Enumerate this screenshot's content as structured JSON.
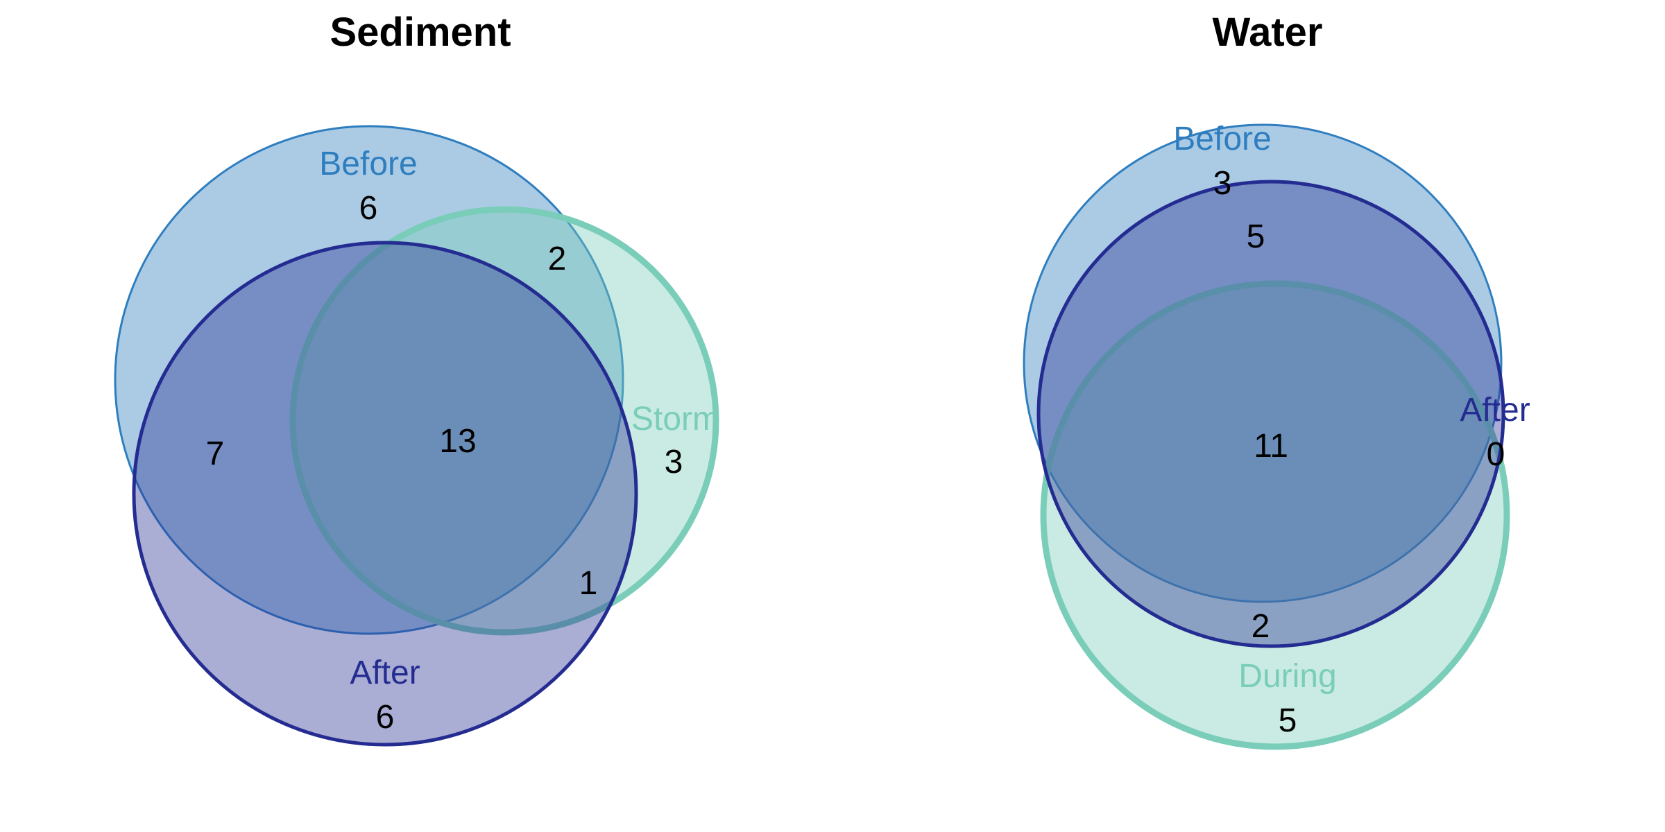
{
  "colors": {
    "before_fill": "#2E7EBF",
    "before_stroke": "#2E7EBF",
    "after_fill": "#2A3194",
    "after_stroke": "#242C91",
    "storm_fill": "#7ACDB9",
    "storm_stroke": "#7ACDB9"
  },
  "diagrams": [
    {
      "title": "Sediment",
      "sets": [
        {
          "key": "before",
          "label": "Before"
        },
        {
          "key": "storm",
          "label": "Storm"
        },
        {
          "key": "after",
          "label": "After"
        }
      ],
      "regions": {
        "before_only": "6",
        "before_storm": "2",
        "before_after": "7",
        "all_three": "13",
        "storm_only": "3",
        "storm_after": "1",
        "after_only": "6"
      }
    },
    {
      "title": "Water",
      "sets": [
        {
          "key": "before",
          "label": "Before"
        },
        {
          "key": "after",
          "label": "After"
        },
        {
          "key": "during",
          "label": "During"
        }
      ],
      "regions": {
        "before_only": "3",
        "before_after": "5",
        "all_three": "11",
        "after_only": "0",
        "after_during": "2",
        "during_only": "5"
      }
    }
  ]
}
